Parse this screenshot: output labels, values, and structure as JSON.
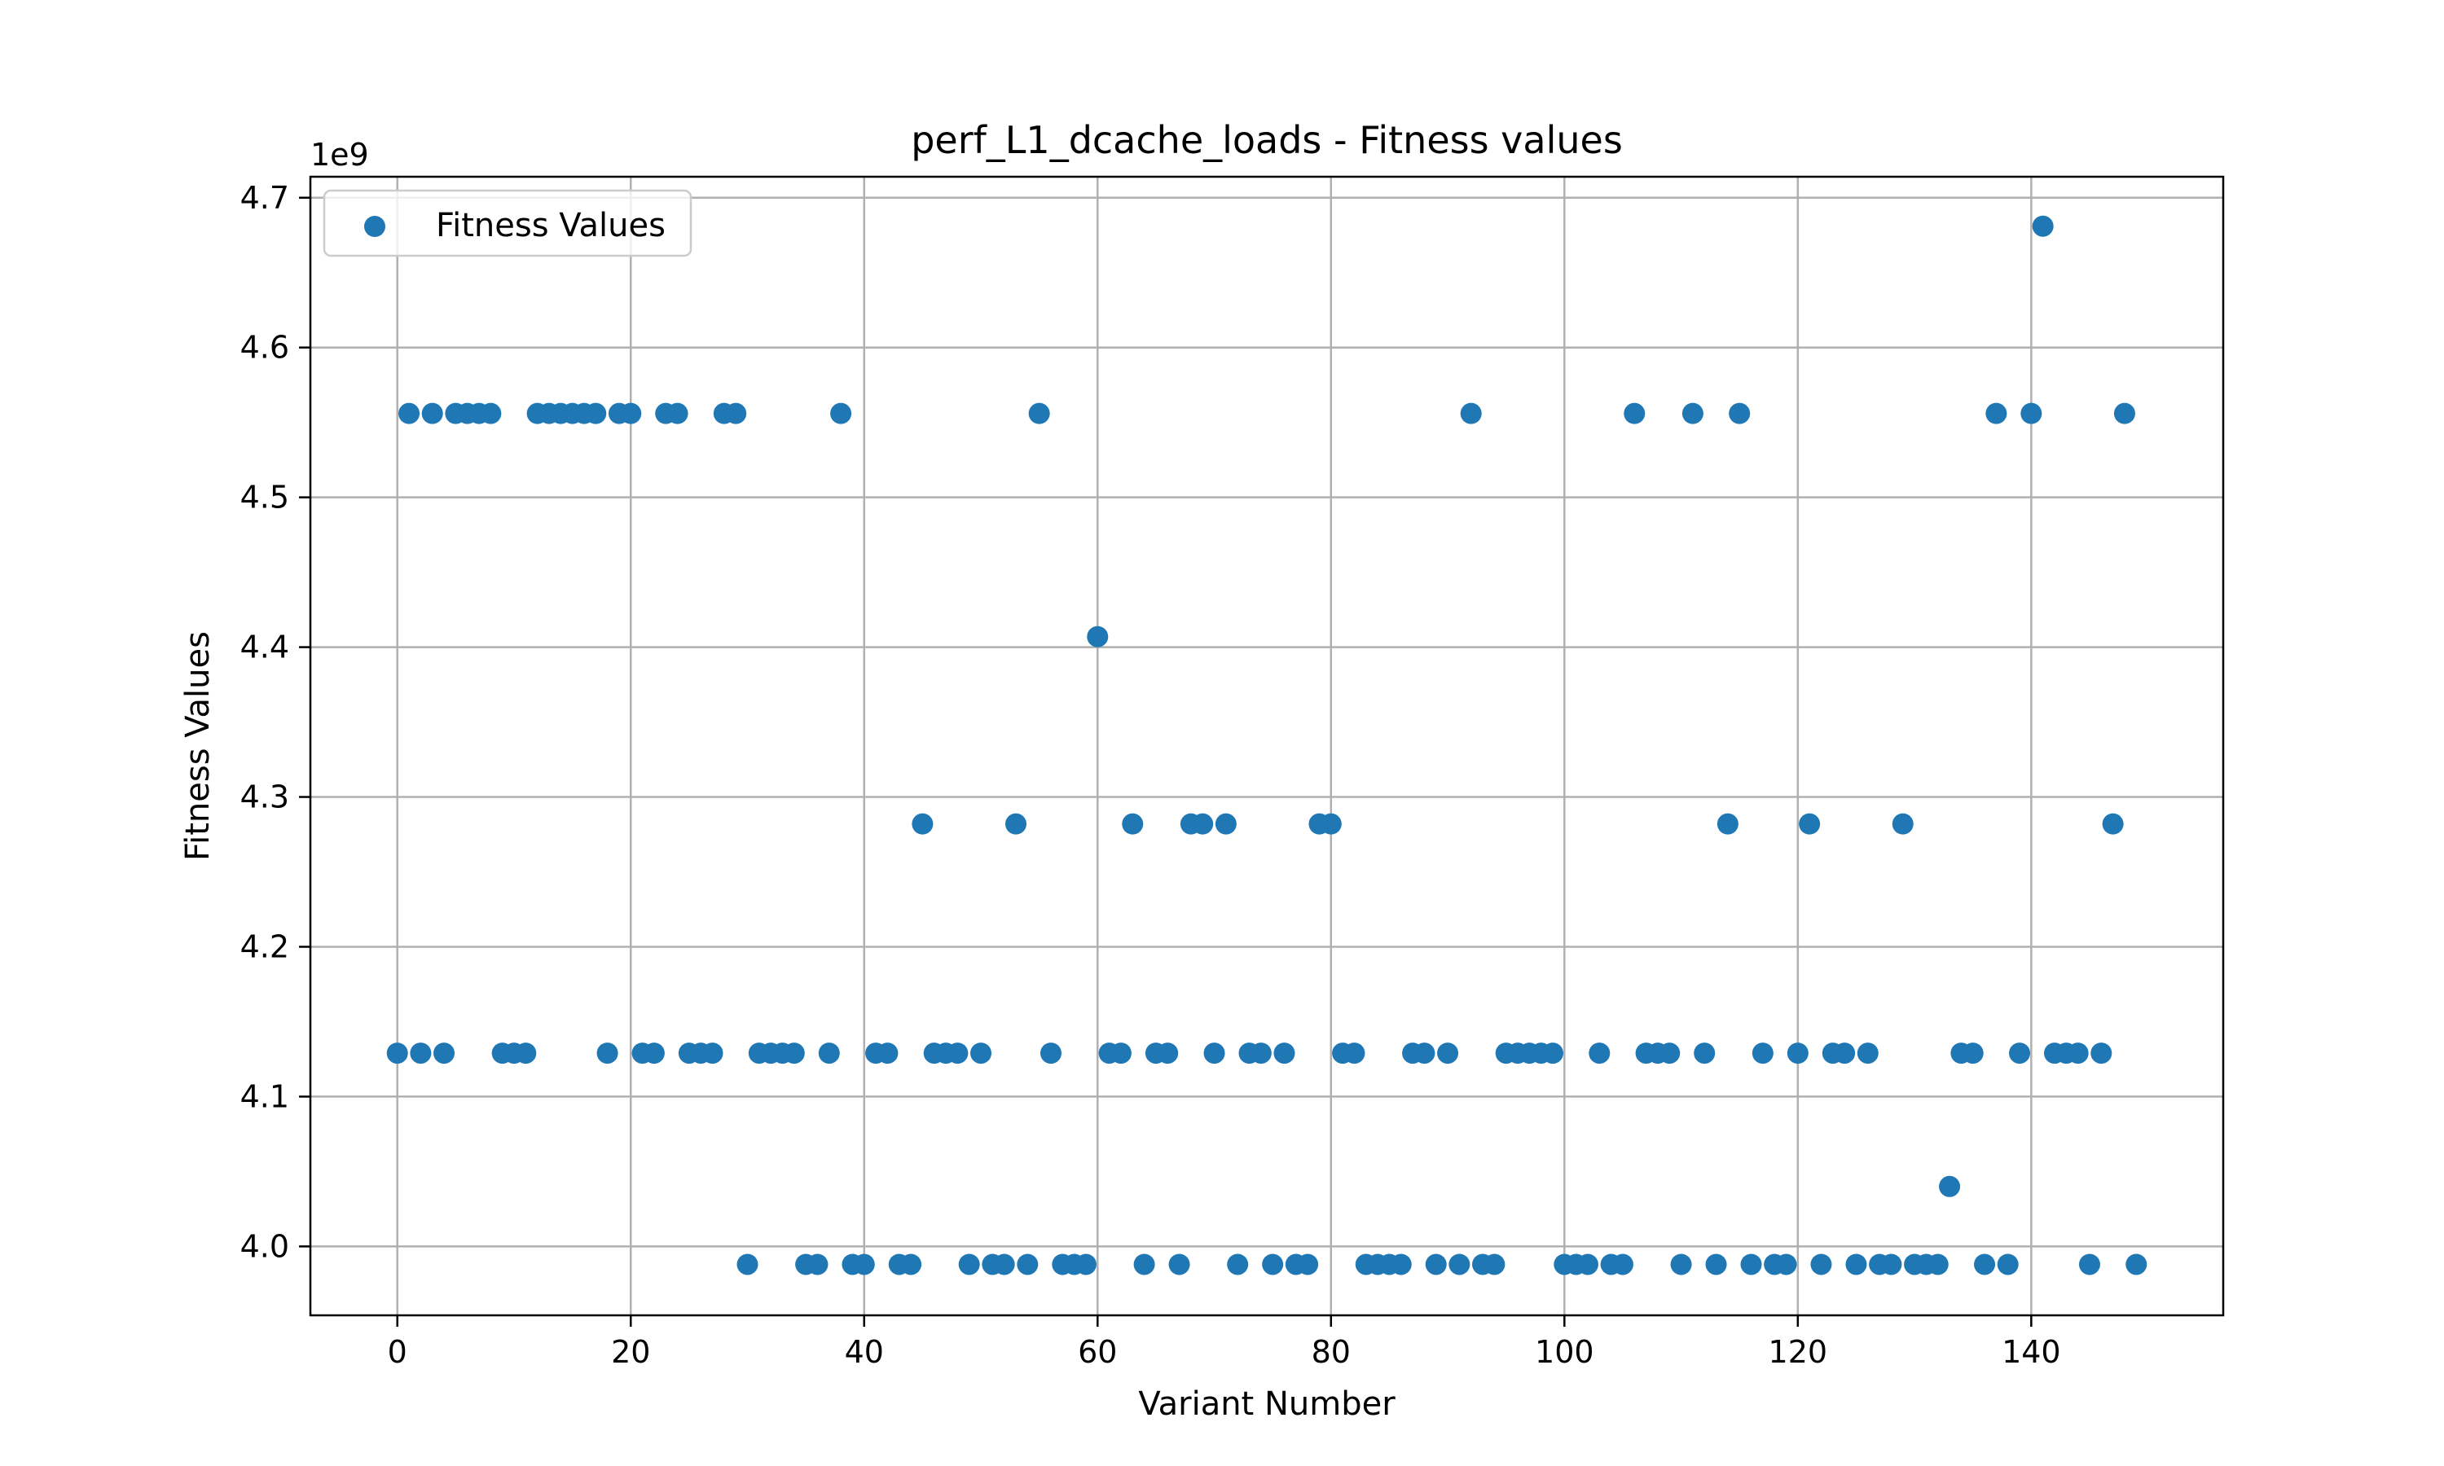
{
  "chart_data": {
    "type": "scatter",
    "title": "perf_L1_dcache_loads - Fitness values",
    "xlabel": "Variant Number",
    "ylabel": "Fitness Values",
    "y_offset_label": "1e9",
    "xlim": [
      -7.45,
      156.45
    ],
    "ylim": [
      3.954,
      4.714
    ],
    "x_ticks": [
      0,
      20,
      40,
      60,
      80,
      100,
      120,
      140
    ],
    "x_tick_labels": [
      "0",
      "20",
      "40",
      "60",
      "80",
      "100",
      "120",
      "140"
    ],
    "y_ticks": [
      4.0,
      4.1,
      4.2,
      4.3,
      4.4,
      4.5,
      4.6,
      4.7
    ],
    "y_tick_labels": [
      "4.0",
      "4.1",
      "4.2",
      "4.3",
      "4.4",
      "4.5",
      "4.6",
      "4.7"
    ],
    "grid": true,
    "legend_position": "top-left",
    "marker_color": "#1f77b4",
    "series": [
      {
        "name": "Fitness Values",
        "x": [
          0,
          1,
          2,
          3,
          4,
          5,
          6,
          7,
          8,
          9,
          10,
          11,
          12,
          13,
          14,
          15,
          16,
          17,
          18,
          19,
          20,
          21,
          22,
          23,
          24,
          25,
          26,
          27,
          28,
          29,
          30,
          31,
          32,
          33,
          34,
          35,
          36,
          37,
          38,
          39,
          40,
          41,
          42,
          43,
          44,
          45,
          46,
          47,
          48,
          49,
          50,
          51,
          52,
          53,
          54,
          55,
          56,
          57,
          58,
          59,
          60,
          61,
          62,
          63,
          64,
          65,
          66,
          67,
          68,
          69,
          70,
          71,
          72,
          73,
          74,
          75,
          76,
          77,
          78,
          79,
          80,
          81,
          82,
          83,
          84,
          85,
          86,
          87,
          88,
          89,
          90,
          91,
          92,
          93,
          94,
          95,
          96,
          97,
          98,
          99,
          100,
          101,
          102,
          103,
          104,
          105,
          106,
          107,
          108,
          109,
          110,
          111,
          112,
          113,
          114,
          115,
          116,
          117,
          118,
          119,
          120,
          121,
          122,
          123,
          124,
          125,
          126,
          127,
          128,
          129,
          130,
          131,
          132,
          133,
          134,
          135,
          136,
          137,
          138,
          139,
          140,
          141,
          142,
          143,
          144,
          145,
          146,
          147,
          148,
          149
        ],
        "y": [
          4.129,
          4.556,
          4.129,
          4.556,
          4.129,
          4.556,
          4.556,
          4.556,
          4.556,
          4.129,
          4.129,
          4.129,
          4.556,
          4.556,
          4.556,
          4.556,
          4.556,
          4.556,
          4.129,
          4.556,
          4.556,
          4.129,
          4.129,
          4.556,
          4.556,
          4.129,
          4.129,
          4.129,
          4.556,
          4.556,
          3.988,
          4.129,
          4.129,
          4.129,
          4.129,
          3.988,
          3.988,
          4.129,
          4.556,
          3.988,
          3.988,
          4.129,
          4.129,
          3.988,
          3.988,
          4.282,
          4.129,
          4.129,
          4.129,
          3.988,
          4.129,
          3.988,
          3.988,
          4.282,
          3.988,
          4.556,
          4.129,
          3.988,
          3.988,
          3.988,
          4.407,
          4.129,
          4.129,
          4.282,
          3.988,
          4.129,
          4.129,
          3.988,
          4.282,
          4.282,
          4.129,
          4.282,
          3.988,
          4.129,
          4.129,
          3.988,
          4.129,
          3.988,
          3.988,
          4.282,
          4.282,
          4.129,
          4.129,
          3.988,
          3.988,
          3.988,
          3.988,
          4.129,
          4.129,
          3.988,
          4.129,
          3.988,
          4.556,
          3.988,
          3.988,
          4.129,
          4.129,
          4.129,
          4.129,
          4.129,
          3.988,
          3.988,
          3.988,
          4.129,
          3.988,
          3.988,
          4.556,
          4.129,
          4.129,
          4.129,
          3.988,
          4.556,
          4.129,
          3.988,
          4.282,
          4.556,
          3.988,
          4.129,
          3.988,
          3.988,
          4.129,
          4.282,
          3.988,
          4.129,
          4.129,
          3.988,
          4.129,
          3.988,
          3.988,
          4.282,
          3.988,
          3.988,
          3.988,
          4.04,
          4.129,
          4.129,
          3.988,
          4.556,
          3.988,
          4.129,
          4.556,
          4.681,
          4.129,
          4.129,
          4.129,
          3.988,
          4.129,
          4.282,
          4.556,
          3.988
        ]
      }
    ]
  }
}
